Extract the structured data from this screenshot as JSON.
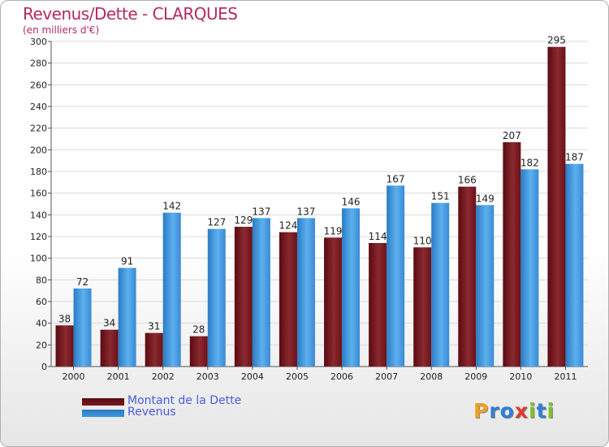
{
  "title": "Revenus/Dette - CLARQUES",
  "subtitle": "(en milliers d'€)",
  "colors": {
    "debt": "#7a1a1f",
    "revenue": "#3d95de",
    "title": "#b52a5f",
    "legend_text": "#4a5cdf"
  },
  "legend": {
    "debt_label": "Montant de la Dette",
    "revenue_label": "Revenus"
  },
  "logo": {
    "text": "Proxiti",
    "letters": [
      "P",
      "r",
      "o",
      "x",
      "i",
      "t",
      "i"
    ],
    "letter_colors": [
      "#f0a020",
      "#2f7fd8",
      "#2f7fd8",
      "#e23a2a",
      "#7fbf2e",
      "#2f7fd8",
      "#7fbf2e"
    ]
  },
  "chart_data": {
    "type": "bar",
    "title": "Revenus/Dette - CLARQUES",
    "ylabel": "(en milliers d'€)",
    "xlabel": "",
    "categories": [
      "2000",
      "2001",
      "2002",
      "2003",
      "2004",
      "2005",
      "2006",
      "2007",
      "2008",
      "2009",
      "2010",
      "2011"
    ],
    "series": [
      {
        "name": "Montant de la Dette",
        "values": [
          38,
          34,
          31,
          28,
          129,
          124,
          119,
          114,
          110,
          166,
          207,
          295
        ]
      },
      {
        "name": "Revenus",
        "values": [
          72,
          91,
          142,
          127,
          137,
          137,
          146,
          167,
          151,
          149,
          182,
          187
        ]
      }
    ],
    "ylim": [
      0,
      300
    ],
    "yticks": [
      0,
      20,
      40,
      60,
      80,
      100,
      120,
      140,
      160,
      180,
      200,
      220,
      240,
      260,
      280,
      300
    ],
    "grid": true,
    "legend_position": "bottom-left"
  }
}
